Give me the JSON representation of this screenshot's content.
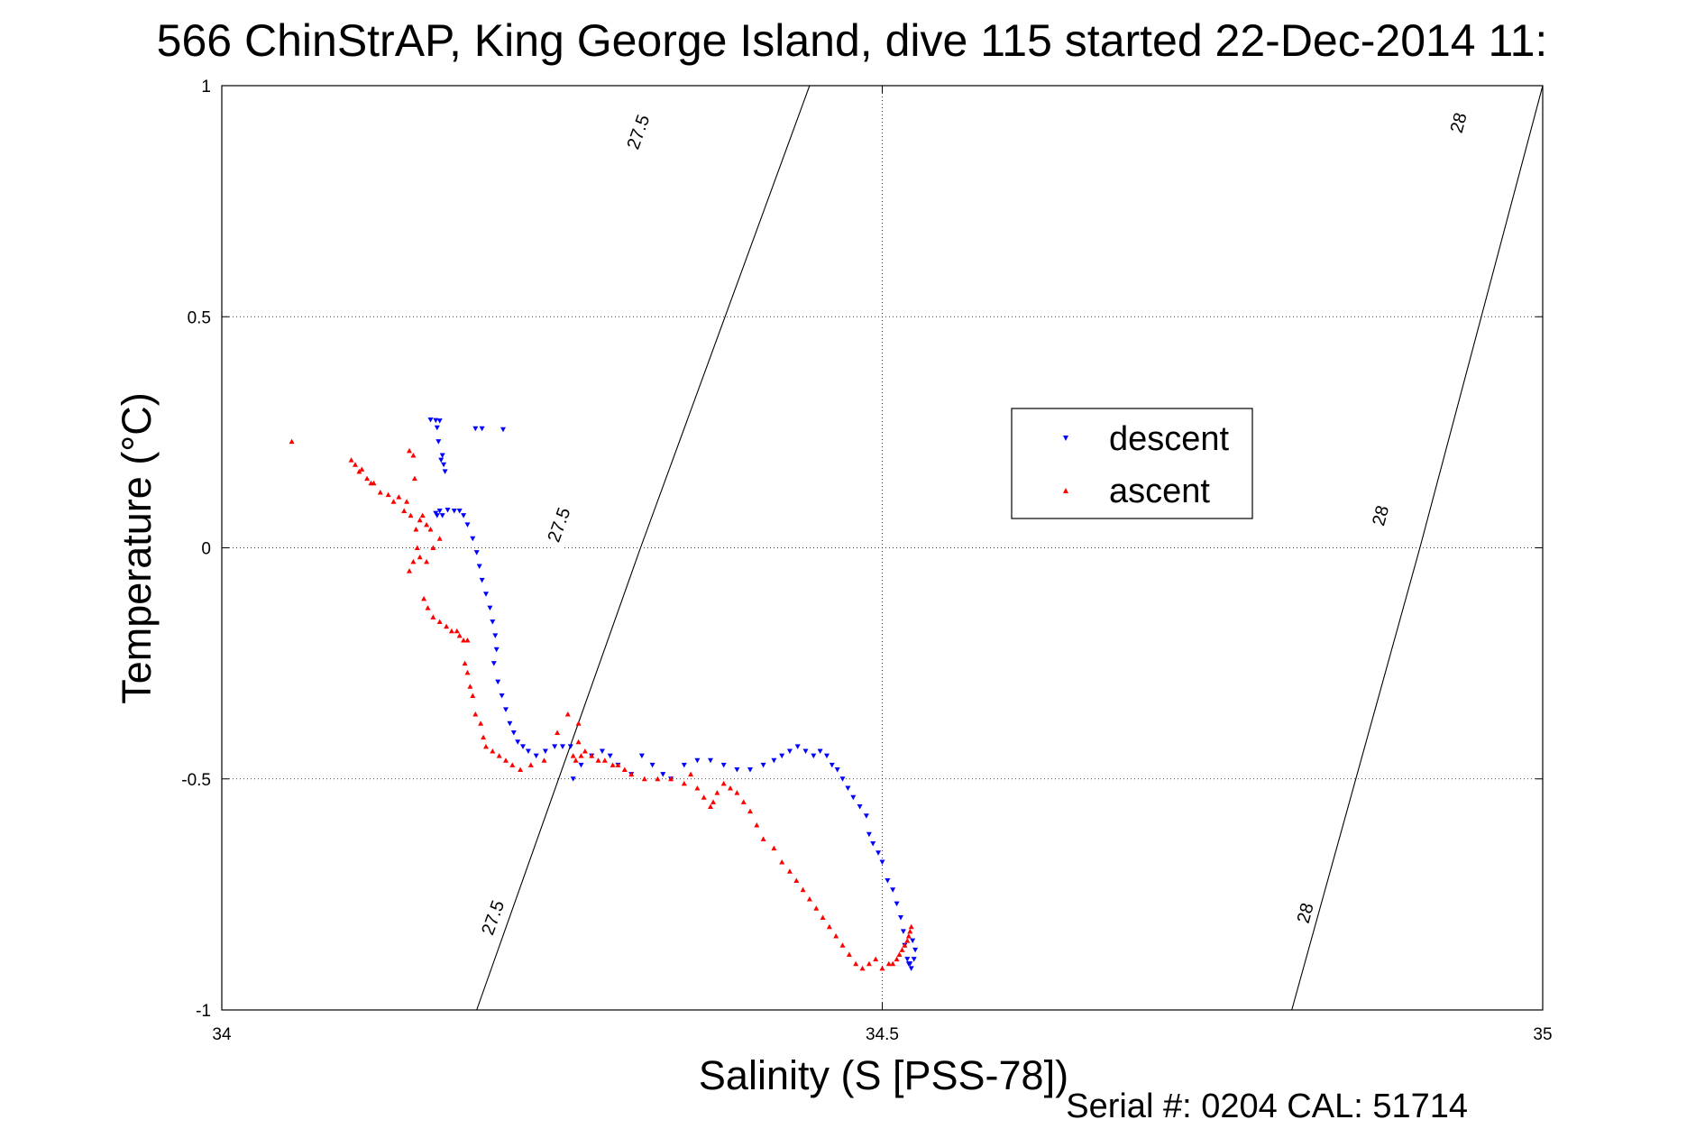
{
  "chart_data": {
    "type": "scatter",
    "title": "566 ChinStrAP, King George Island, dive 115 started 22-Dec-2014 11:",
    "xlabel": "Salinity (S [PSS-78])",
    "ylabel": "Temperature (°C)",
    "xlim": [
      34,
      35
    ],
    "ylim": [
      -1,
      1
    ],
    "xticks": [
      34,
      34.5,
      35
    ],
    "xtick_labels": [
      "34",
      "34.5",
      "35"
    ],
    "yticks": [
      1,
      0.5,
      0,
      -0.5,
      -1
    ],
    "ytick_labels": [
      "1",
      "0.5",
      "0",
      "-0.5",
      "-1"
    ],
    "grid": true,
    "legend_position": "center-right",
    "footer": "Serial #: 0204  CAL: 51714",
    "isopycnals": [
      {
        "value": 27.5,
        "points": [
          [
            34.193,
            -1.0
          ],
          [
            34.317,
            0.0
          ],
          [
            34.445,
            1.0
          ]
        ],
        "labels": [
          {
            "text": "27.5",
            "x": 34.205,
            "y": -0.8
          },
          {
            "text": "27.5",
            "x": 34.255,
            "y": 0.05
          },
          {
            "text": "27.5",
            "x": 34.315,
            "y": 0.9
          }
        ]
      },
      {
        "value": 28,
        "points": [
          [
            34.81,
            -1.0
          ],
          [
            34.907,
            0.0
          ],
          [
            35.0,
            1.0
          ]
        ],
        "labels": [
          {
            "text": "28",
            "x": 34.82,
            "y": -0.79
          },
          {
            "text": "28",
            "x": 34.877,
            "y": 0.07
          },
          {
            "text": "28",
            "x": 34.936,
            "y": 0.92
          }
        ]
      }
    ],
    "series": [
      {
        "name": "descent",
        "color": "#0000ff",
        "marker": "triangle-down",
        "x": [
          34.158,
          34.162,
          34.165,
          34.163,
          34.164,
          34.167,
          34.166,
          34.168,
          34.169,
          34.192,
          34.197,
          34.213,
          34.165,
          34.163,
          34.162,
          34.167,
          34.171,
          34.176,
          34.18,
          34.183,
          34.186,
          34.19,
          34.193,
          34.195,
          34.197,
          34.2,
          34.203,
          34.205,
          34.207,
          34.208,
          34.206,
          34.209,
          34.212,
          34.215,
          34.218,
          34.221,
          34.224,
          34.228,
          34.232,
          34.238,
          34.245,
          34.252,
          34.258,
          34.264,
          34.266,
          34.272,
          34.28,
          34.288,
          34.294,
          34.3,
          34.31,
          34.318,
          34.326,
          34.334,
          34.34,
          34.35,
          34.36,
          34.37,
          34.38,
          34.39,
          34.4,
          34.41,
          34.418,
          34.424,
          34.43,
          34.436,
          34.442,
          34.448,
          34.453,
          34.458,
          34.462,
          34.466,
          34.47,
          34.474,
          34.478,
          34.483,
          34.488,
          34.49,
          34.493,
          34.497,
          34.5,
          34.504,
          34.508,
          34.511,
          34.514,
          34.516,
          34.517,
          34.519,
          34.52,
          34.522,
          34.524,
          34.525,
          34.523,
          34.521
        ],
        "y": [
          0.277,
          0.276,
          0.275,
          0.26,
          0.23,
          0.2,
          0.19,
          0.18,
          0.165,
          0.258,
          0.258,
          0.256,
          0.08,
          0.07,
          0.075,
          0.07,
          0.082,
          0.08,
          0.08,
          0.07,
          0.05,
          0.02,
          -0.01,
          -0.04,
          -0.07,
          -0.1,
          -0.13,
          -0.16,
          -0.19,
          -0.22,
          -0.25,
          -0.29,
          -0.32,
          -0.35,
          -0.38,
          -0.4,
          -0.42,
          -0.43,
          -0.44,
          -0.45,
          -0.44,
          -0.43,
          -0.43,
          -0.43,
          -0.5,
          -0.47,
          -0.45,
          -0.44,
          -0.45,
          -0.47,
          -0.49,
          -0.45,
          -0.47,
          -0.49,
          -0.5,
          -0.47,
          -0.46,
          -0.46,
          -0.47,
          -0.48,
          -0.48,
          -0.47,
          -0.46,
          -0.45,
          -0.44,
          -0.43,
          -0.44,
          -0.45,
          -0.44,
          -0.45,
          -0.47,
          -0.48,
          -0.5,
          -0.52,
          -0.54,
          -0.56,
          -0.58,
          -0.62,
          -0.64,
          -0.66,
          -0.68,
          -0.72,
          -0.74,
          -0.77,
          -0.8,
          -0.83,
          -0.86,
          -0.89,
          -0.9,
          -0.91,
          -0.89,
          -0.87,
          -0.85,
          -0.9
        ]
      },
      {
        "name": "ascent",
        "color": "#ff0000",
        "marker": "triangle-up",
        "x": [
          34.053,
          34.098,
          34.101,
          34.104,
          34.106,
          34.11,
          34.113,
          34.115,
          34.12,
          34.126,
          34.13,
          34.134,
          34.138,
          34.145,
          34.142,
          34.146,
          34.14,
          34.143,
          34.147,
          34.15,
          34.152,
          34.155,
          34.158,
          34.148,
          34.145,
          34.142,
          34.15,
          34.155,
          34.16,
          34.165,
          34.153,
          34.156,
          34.16,
          34.165,
          34.17,
          34.174,
          34.178,
          34.18,
          34.183,
          34.186,
          34.184,
          34.186,
          34.188,
          34.19,
          34.192,
          34.196,
          34.198,
          34.2,
          34.205,
          34.21,
          34.215,
          34.22,
          34.226,
          34.234,
          34.244,
          34.254,
          34.262,
          34.27,
          34.27,
          34.266,
          34.268,
          34.272,
          34.275,
          34.28,
          34.285,
          34.29,
          34.296,
          34.3,
          34.305,
          34.31,
          34.32,
          34.33,
          34.34,
          34.35,
          34.355,
          34.36,
          34.365,
          34.37,
          34.372,
          34.375,
          34.38,
          34.385,
          34.39,
          34.395,
          34.4,
          34.405,
          34.41,
          34.418,
          34.424,
          34.43,
          34.435,
          34.44,
          34.445,
          34.45,
          34.455,
          34.46,
          34.465,
          34.47,
          34.475,
          34.48,
          34.485,
          34.49,
          34.495,
          34.5,
          34.505,
          34.508,
          34.511,
          34.513,
          34.515,
          34.517,
          34.519,
          34.52,
          34.521,
          34.522
        ],
        "y": [
          0.23,
          0.19,
          0.18,
          0.165,
          0.17,
          0.15,
          0.14,
          0.14,
          0.12,
          0.115,
          0.1,
          0.11,
          0.08,
          0.2,
          0.21,
          0.15,
          0.1,
          0.07,
          0.04,
          0.06,
          0.07,
          0.05,
          0.04,
          0.0,
          -0.03,
          -0.05,
          -0.02,
          -0.03,
          -0.0,
          0.02,
          -0.11,
          -0.13,
          -0.15,
          -0.16,
          -0.17,
          -0.18,
          -0.18,
          -0.19,
          -0.2,
          -0.2,
          -0.25,
          -0.27,
          -0.3,
          -0.32,
          -0.36,
          -0.38,
          -0.41,
          -0.43,
          -0.44,
          -0.45,
          -0.46,
          -0.47,
          -0.48,
          -0.47,
          -0.46,
          -0.4,
          -0.36,
          -0.38,
          -0.42,
          -0.45,
          -0.46,
          -0.45,
          -0.44,
          -0.45,
          -0.46,
          -0.46,
          -0.47,
          -0.47,
          -0.48,
          -0.49,
          -0.5,
          -0.5,
          -0.5,
          -0.51,
          -0.49,
          -0.52,
          -0.54,
          -0.56,
          -0.55,
          -0.53,
          -0.51,
          -0.52,
          -0.53,
          -0.55,
          -0.57,
          -0.6,
          -0.63,
          -0.65,
          -0.68,
          -0.7,
          -0.72,
          -0.74,
          -0.76,
          -0.78,
          -0.8,
          -0.82,
          -0.84,
          -0.86,
          -0.88,
          -0.9,
          -0.91,
          -0.9,
          -0.89,
          -0.91,
          -0.9,
          -0.9,
          -0.89,
          -0.88,
          -0.87,
          -0.86,
          -0.85,
          -0.84,
          -0.83,
          -0.82
        ]
      }
    ]
  }
}
